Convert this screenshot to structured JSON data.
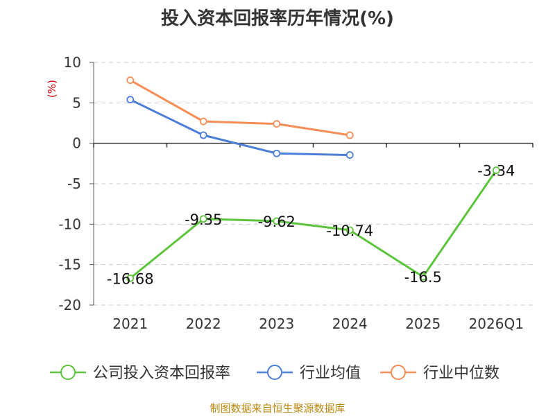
{
  "title": "投入资本回报率历年情况(%)",
  "source": "制图数据来自恒生聚源数据库",
  "chart_data": {
    "type": "line",
    "categories": [
      "2021",
      "2022",
      "2023",
      "2024",
      "2025",
      "2026Q1"
    ],
    "ylabel": "(%)",
    "ylim": [
      -20,
      10
    ],
    "yticks": [
      10,
      5,
      0,
      -5,
      -10,
      -15,
      -20
    ],
    "grid": true,
    "legend_position": "bottom",
    "series": [
      {
        "name": "公司投入资本回报率",
        "color": "#5cc43a",
        "values": [
          -16.68,
          -9.35,
          -9.62,
          -10.74,
          -16.5,
          -3.34
        ],
        "labels": [
          "-16.68",
          "-9.35",
          "-9.62",
          "-10.74",
          "-16.5",
          "-3.34"
        ]
      },
      {
        "name": "行业均值",
        "color": "#4a7ed8",
        "values": [
          5.4,
          1.0,
          -1.25,
          -1.45,
          null,
          null
        ]
      },
      {
        "name": "行业中位数",
        "color": "#f58d54",
        "values": [
          7.8,
          2.7,
          2.4,
          1.0,
          null,
          null
        ]
      }
    ]
  }
}
